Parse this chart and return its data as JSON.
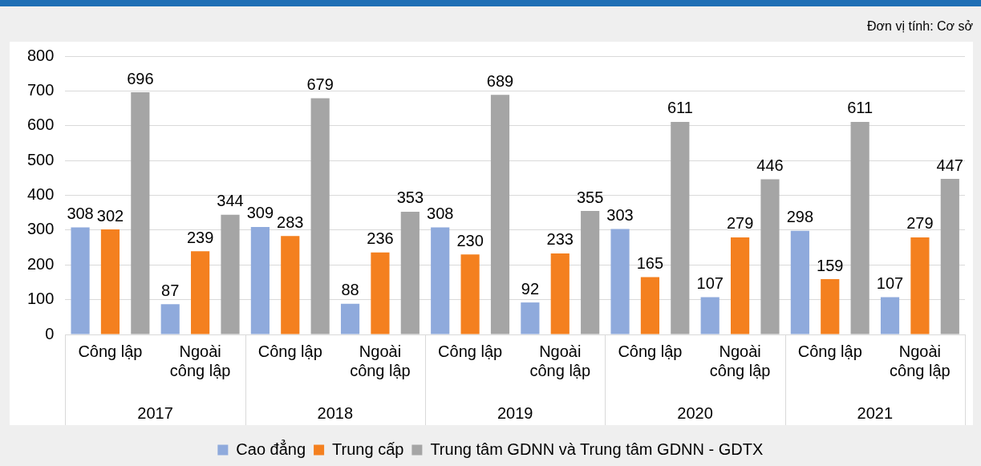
{
  "chart_data": {
    "type": "bar",
    "categories": [
      "Công lập",
      "Ngoài công lập",
      "Công lập",
      "Ngoài công lập",
      "Công lập",
      "Ngoài công lập",
      "Công lập",
      "Ngoài công lập",
      "Công lập",
      "Ngoài công lập"
    ],
    "series": [
      {
        "name": "Cao đẳng",
        "color": "#8faadc",
        "values": [
          308,
          87,
          309,
          88,
          308,
          92,
          303,
          107,
          298,
          107
        ]
      },
      {
        "name": "Trung cấp",
        "color": "#f4801f",
        "values": [
          302,
          239,
          283,
          236,
          230,
          233,
          165,
          279,
          159,
          279
        ]
      },
      {
        "name": "Trung tâm GDNN và Trung tâm GDNN - GDTX",
        "color": "#a5a5a5",
        "values": [
          696,
          344,
          679,
          353,
          689,
          355,
          611,
          446,
          611,
          447
        ]
      }
    ],
    "ylim": [
      0,
      800
    ],
    "yticks": [
      0,
      100,
      200,
      300,
      400,
      500,
      600,
      700,
      800
    ],
    "grid": "y",
    "legend": "bottom",
    "data_labels": true,
    "annotations": [
      "Đơn vị tính: Cơ sở",
      "2017",
      "2018",
      "2019",
      "2020",
      "2021"
    ]
  }
}
